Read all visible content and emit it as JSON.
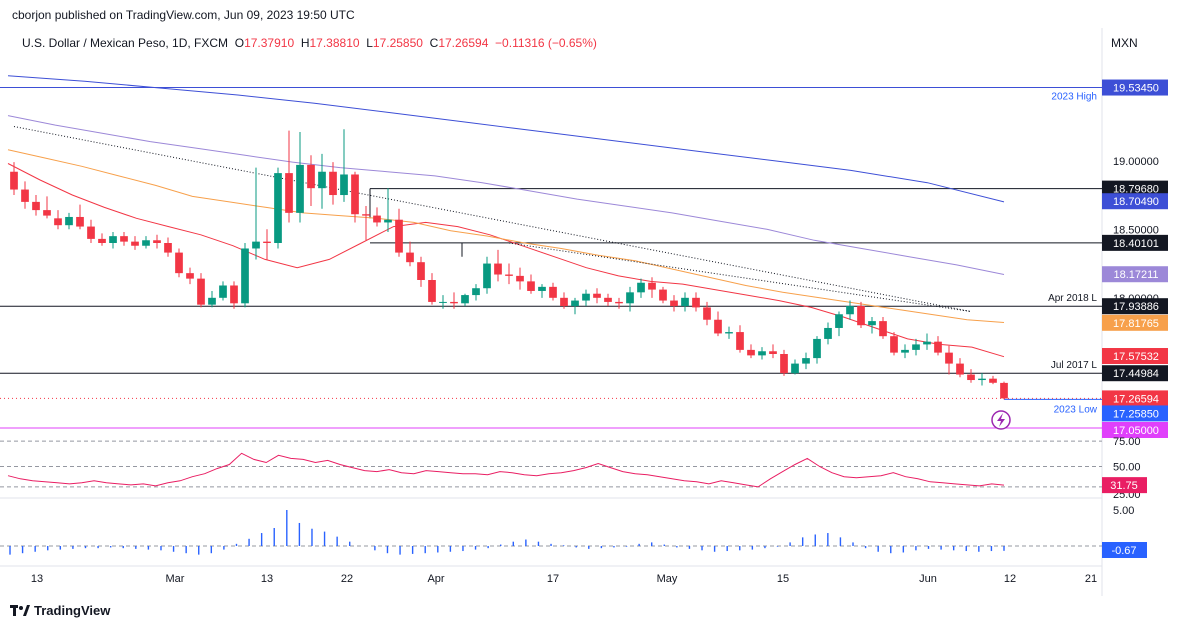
{
  "header": {
    "publisher": "cborjon published on TradingView.com, Jun 09, 2023 19:50 UTC",
    "symbol": "U.S. Dollar / Mexican Peso, 1D, FXCM",
    "open_label": "O",
    "open": "17.37910",
    "high_label": "H",
    "high": "17.38810",
    "low_label": "L",
    "low": "17.25850",
    "close_label": "C",
    "close": "17.26594",
    "change": "−0.11316 (−0.65%)",
    "currency": "MXN"
  },
  "footer": {
    "brand": "TradingView"
  },
  "colors": {
    "up": "#089981",
    "down": "#f23645",
    "ema20": "#f23645",
    "ema50": "#f7a04b",
    "ema100": "#9c88d8",
    "ema200": "#3d4fd6",
    "level": "#131722",
    "rsi": "#e91e63",
    "macd_hist": "#2962ff",
    "low_line": "#e040fb"
  },
  "chart_data": [
    {
      "type": "candlestick",
      "x_ticks": [
        "13",
        "Mar",
        "13",
        "22",
        "Apr",
        "17",
        "May",
        "15",
        "Jun",
        "12",
        "21"
      ],
      "y_ticks": [
        "19.00000",
        "18.50000",
        "18.00000"
      ],
      "ylim": [
        17.05,
        19.75
      ],
      "horizontal_levels": [
        {
          "value": 19.5345,
          "label": "2023 High",
          "price": "19.53450"
        },
        {
          "value": 18.7968,
          "label": "",
          "price": "18.79680"
        },
        {
          "value": 18.40101,
          "label": "",
          "price": "18.40101"
        },
        {
          "value": 17.93886,
          "label": "Apr 2018 L",
          "price": "17.93886"
        },
        {
          "value": 17.44984,
          "label": "Jul 2017 L",
          "price": "17.44984"
        },
        {
          "value": 17.2585,
          "label": "2023 Low",
          "price": "17.25850"
        }
      ],
      "price_badges": [
        {
          "value": 18.7049,
          "price": "18.70490",
          "color": "#3d4fd6"
        },
        {
          "value": 18.17211,
          "price": "18.17211",
          "color": "#9c88d8"
        },
        {
          "value": 17.81765,
          "price": "17.81765",
          "color": "#f7a04b"
        },
        {
          "value": 17.57532,
          "price": "17.57532",
          "color": "#f23645"
        },
        {
          "value": 17.26594,
          "price": "17.26594",
          "color": "#f23645"
        },
        {
          "value": 17.2585,
          "price": "17.25850",
          "color": "#2962ff"
        },
        {
          "value": 17.05,
          "price": "17.05000",
          "color": "#e040fb"
        }
      ],
      "candles": [
        [
          18.92,
          18.99,
          18.75,
          18.79
        ],
        [
          18.79,
          18.85,
          18.65,
          18.7
        ],
        [
          18.7,
          18.75,
          18.6,
          18.64
        ],
        [
          18.64,
          18.74,
          18.58,
          18.6
        ],
        [
          18.58,
          18.64,
          18.5,
          18.53
        ],
        [
          18.53,
          18.62,
          18.5,
          18.59
        ],
        [
          18.59,
          18.68,
          18.5,
          18.52
        ],
        [
          18.52,
          18.57,
          18.4,
          18.43
        ],
        [
          18.43,
          18.47,
          18.38,
          18.4
        ],
        [
          18.4,
          18.48,
          18.36,
          18.45
        ],
        [
          18.45,
          18.48,
          18.38,
          18.41
        ],
        [
          18.41,
          18.45,
          18.35,
          18.38
        ],
        [
          18.38,
          18.45,
          18.36,
          18.42
        ],
        [
          18.42,
          18.46,
          18.36,
          18.4
        ],
        [
          18.4,
          18.44,
          18.3,
          18.33
        ],
        [
          18.33,
          18.36,
          18.15,
          18.18
        ],
        [
          18.18,
          18.22,
          18.1,
          18.14
        ],
        [
          18.14,
          18.18,
          17.93,
          17.95
        ],
        [
          17.95,
          18.05,
          17.93,
          18.0
        ],
        [
          18.0,
          18.12,
          17.98,
          18.09
        ],
        [
          18.09,
          18.12,
          17.92,
          17.96
        ],
        [
          17.96,
          18.4,
          17.93,
          18.36
        ],
        [
          18.36,
          18.95,
          18.28,
          18.41
        ],
        [
          18.41,
          18.5,
          18.28,
          18.4
        ],
        [
          18.4,
          18.95,
          18.36,
          18.91
        ],
        [
          18.91,
          19.22,
          18.55,
          18.62
        ],
        [
          18.62,
          19.21,
          18.55,
          18.97
        ],
        [
          18.97,
          19.04,
          18.67,
          18.8
        ],
        [
          18.8,
          19.05,
          18.65,
          18.92
        ],
        [
          18.92,
          18.99,
          18.68,
          18.75
        ],
        [
          18.75,
          19.23,
          18.7,
          18.9
        ],
        [
          18.9,
          18.92,
          18.55,
          18.61
        ],
        [
          18.61,
          18.67,
          18.42,
          18.6
        ],
        [
          18.6,
          18.66,
          18.52,
          18.55
        ],
        [
          18.55,
          18.8,
          18.48,
          18.57
        ],
        [
          18.57,
          18.65,
          18.3,
          18.33
        ],
        [
          18.33,
          18.41,
          18.23,
          18.26
        ],
        [
          18.26,
          18.3,
          18.08,
          18.13
        ],
        [
          18.13,
          18.18,
          17.95,
          17.97
        ],
        [
          17.97,
          18.02,
          17.92,
          17.97
        ],
        [
          17.97,
          18.04,
          17.92,
          17.96
        ],
        [
          17.96,
          18.03,
          17.94,
          18.02
        ],
        [
          18.02,
          18.1,
          17.98,
          18.07
        ],
        [
          18.07,
          18.3,
          18.03,
          18.25
        ],
        [
          18.25,
          18.35,
          18.12,
          18.17
        ],
        [
          18.17,
          18.25,
          18.1,
          18.16
        ],
        [
          18.16,
          18.22,
          18.06,
          18.12
        ],
        [
          18.12,
          18.17,
          18.03,
          18.05
        ],
        [
          18.05,
          18.1,
          18.0,
          18.08
        ],
        [
          18.08,
          18.11,
          17.98,
          18.0
        ],
        [
          18.0,
          18.04,
          17.92,
          17.94
        ],
        [
          17.94,
          18.0,
          17.88,
          17.98
        ],
        [
          17.98,
          18.06,
          17.94,
          18.03
        ],
        [
          18.03,
          18.07,
          17.96,
          18.0
        ],
        [
          18.0,
          18.03,
          17.94,
          17.97
        ],
        [
          17.97,
          18.0,
          17.92,
          17.96
        ],
        [
          17.96,
          18.08,
          17.9,
          18.04
        ],
        [
          18.04,
          18.14,
          18.0,
          18.11
        ],
        [
          18.11,
          18.15,
          18.0,
          18.06
        ],
        [
          18.06,
          18.08,
          17.96,
          17.98
        ],
        [
          17.98,
          18.02,
          17.9,
          17.94
        ],
        [
          17.94,
          18.04,
          17.9,
          18.0
        ],
        [
          18.0,
          18.04,
          17.9,
          17.93
        ],
        [
          17.93,
          17.97,
          17.8,
          17.84
        ],
        [
          17.84,
          17.9,
          17.72,
          17.74
        ],
        [
          17.74,
          17.79,
          17.7,
          17.75
        ],
        [
          17.75,
          17.8,
          17.6,
          17.62
        ],
        [
          17.62,
          17.66,
          17.56,
          17.58
        ],
        [
          17.58,
          17.64,
          17.55,
          17.61
        ],
        [
          17.61,
          17.66,
          17.56,
          17.59
        ],
        [
          17.59,
          17.62,
          17.43,
          17.45
        ],
        [
          17.45,
          17.55,
          17.44,
          17.52
        ],
        [
          17.52,
          17.6,
          17.48,
          17.56
        ],
        [
          17.56,
          17.72,
          17.52,
          17.7
        ],
        [
          17.7,
          17.82,
          17.66,
          17.78
        ],
        [
          17.78,
          17.9,
          17.72,
          17.88
        ],
        [
          17.88,
          17.98,
          17.84,
          17.94
        ],
        [
          17.94,
          17.97,
          17.78,
          17.8
        ],
        [
          17.8,
          17.86,
          17.74,
          17.83
        ],
        [
          17.83,
          17.86,
          17.7,
          17.72
        ],
        [
          17.72,
          17.75,
          17.58,
          17.6
        ],
        [
          17.6,
          17.66,
          17.56,
          17.62
        ],
        [
          17.62,
          17.7,
          17.58,
          17.66
        ],
        [
          17.66,
          17.74,
          17.62,
          17.68
        ],
        [
          17.68,
          17.72,
          17.58,
          17.6
        ],
        [
          17.6,
          17.65,
          17.44,
          17.52
        ],
        [
          17.52,
          17.56,
          17.42,
          17.44
        ],
        [
          17.44,
          17.48,
          17.38,
          17.4
        ],
        [
          17.4,
          17.45,
          17.36,
          17.41
        ],
        [
          17.41,
          17.43,
          17.37,
          17.38
        ],
        [
          17.3791,
          17.3881,
          17.2585,
          17.26594
        ]
      ],
      "ema_series": [
        {
          "name": "EMA20",
          "values": [
            18.98,
            18.86,
            18.75,
            18.66,
            18.58,
            18.52,
            18.46,
            18.38,
            18.28,
            18.22,
            18.28,
            18.4,
            18.52,
            18.55,
            18.52,
            18.46,
            18.38,
            18.3,
            18.22,
            18.16,
            18.12,
            18.1,
            18.06,
            18.02,
            17.98,
            17.93,
            17.86,
            17.78,
            17.7,
            17.66,
            17.64,
            17.57
          ]
        },
        {
          "name": "EMA50",
          "values": [
            19.08,
            19.02,
            18.96,
            18.89,
            18.82,
            18.74,
            18.7,
            18.66,
            18.62,
            18.6,
            18.58,
            18.55,
            18.49,
            18.45,
            18.4,
            18.36,
            18.31,
            18.27,
            18.21,
            18.15,
            18.09,
            18.04,
            18.0,
            17.96,
            17.92,
            17.88,
            17.84,
            17.82
          ]
        },
        {
          "name": "EMA100",
          "values": [
            19.33,
            19.26,
            19.2,
            19.14,
            19.09,
            19.04,
            18.99,
            18.95,
            18.92,
            18.89,
            18.84,
            18.78,
            18.72,
            18.67,
            18.62,
            18.56,
            18.5,
            18.42,
            18.36,
            18.3,
            18.24,
            18.17
          ]
        },
        {
          "name": "EMA200",
          "values": [
            19.62,
            19.58,
            19.53,
            19.48,
            19.42,
            19.35,
            19.28,
            19.21,
            19.14,
            19.07,
            19.0,
            18.93,
            18.84,
            18.7
          ]
        }
      ],
      "trendlines": [
        {
          "from": [
            0,
            19.25
          ],
          "to": [
            87,
            17.9
          ],
          "style": "dotted"
        },
        {
          "from": [
            45,
            18.4
          ],
          "to": [
            87,
            17.9
          ],
          "style": "dotted"
        }
      ]
    },
    {
      "type": "line",
      "name": "RSI",
      "y_ticks": [
        "75.00",
        "50.00",
        "25.00"
      ],
      "ylim": [
        25,
        80
      ],
      "last": "31.75",
      "values": [
        41,
        38,
        36,
        35,
        34,
        33,
        34,
        36,
        34,
        33,
        32,
        33,
        31,
        34,
        36,
        40,
        43,
        48,
        52,
        63,
        57,
        54,
        61,
        58,
        57,
        54,
        56,
        52,
        49,
        46,
        45,
        47,
        44,
        43,
        46,
        45,
        44,
        43,
        43,
        42,
        45,
        44,
        42,
        41,
        43,
        44,
        46,
        49,
        53,
        49,
        45,
        43,
        42,
        40,
        38,
        36,
        35,
        33,
        36,
        34,
        32,
        30,
        38,
        45,
        52,
        58,
        50,
        44,
        40,
        39,
        40,
        41,
        44,
        40,
        38,
        35,
        34,
        33,
        32,
        31,
        33,
        31.75
      ]
    },
    {
      "type": "bar",
      "name": "MACD histogram",
      "y_ticks": [
        "5.00"
      ],
      "ylim": [
        -3,
        6
      ],
      "last": "-0.67",
      "values": [
        -1.2,
        -1.0,
        -0.8,
        -0.6,
        -0.5,
        -0.4,
        -0.3,
        -0.3,
        -0.2,
        -0.3,
        -0.4,
        -0.5,
        -0.6,
        -0.8,
        -1.0,
        -1.2,
        -1.0,
        -0.5,
        0.3,
        1.0,
        1.8,
        2.5,
        5.0,
        3.2,
        2.4,
        2.0,
        1.3,
        0.6,
        0.0,
        -0.6,
        -1.0,
        -1.2,
        -1.1,
        -1.0,
        -0.9,
        -0.8,
        -0.7,
        -0.5,
        -0.3,
        0.2,
        0.6,
        0.9,
        0.6,
        0.3,
        0.1,
        -0.2,
        -0.4,
        -0.3,
        -0.2,
        -0.1,
        0.3,
        0.5,
        0.2,
        -0.2,
        -0.4,
        -0.6,
        -0.8,
        -0.7,
        -0.6,
        -0.5,
        -0.3,
        -0.1,
        0.5,
        1.2,
        1.6,
        1.8,
        1.2,
        0.5,
        -0.3,
        -0.8,
        -1.0,
        -0.9,
        -0.6,
        -0.4,
        -0.5,
        -0.6,
        -0.7,
        -0.8,
        -0.7,
        -0.67
      ]
    }
  ]
}
